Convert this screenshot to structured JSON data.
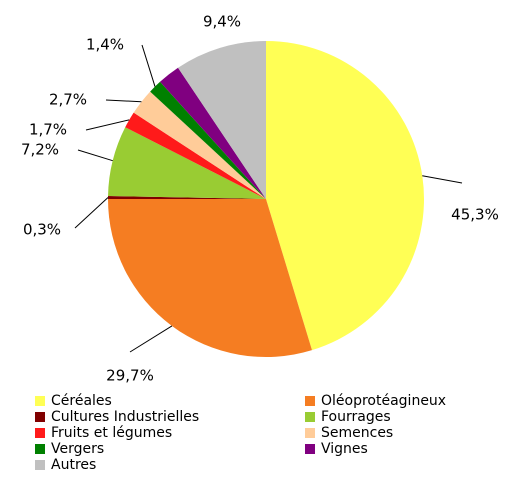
{
  "chart_data": {
    "type": "pie",
    "categories": [
      "Céréales",
      "Oléoprotéagineux",
      "Cultures Industrielles",
      "Fourrages",
      "Fruits et légumes",
      "Semences",
      "Vergers",
      "Vignes",
      "Autres"
    ],
    "values": [
      45.3,
      29.7,
      0.3,
      7.2,
      1.7,
      2.7,
      1.4,
      2.3,
      9.4
    ],
    "value_labels": [
      "45,3%",
      "29,7%",
      "0,3%",
      "7,2%",
      "1,7%",
      "2,7%",
      "1,4%",
      null,
      "9,4%"
    ],
    "colors": [
      "#ffff55",
      "#f57d22",
      "#800000",
      "#99cc33",
      "#ff1a1a",
      "#ffcc99",
      "#008000",
      "#800080",
      "#c0c0c0"
    ],
    "legend": "bottom"
  }
}
